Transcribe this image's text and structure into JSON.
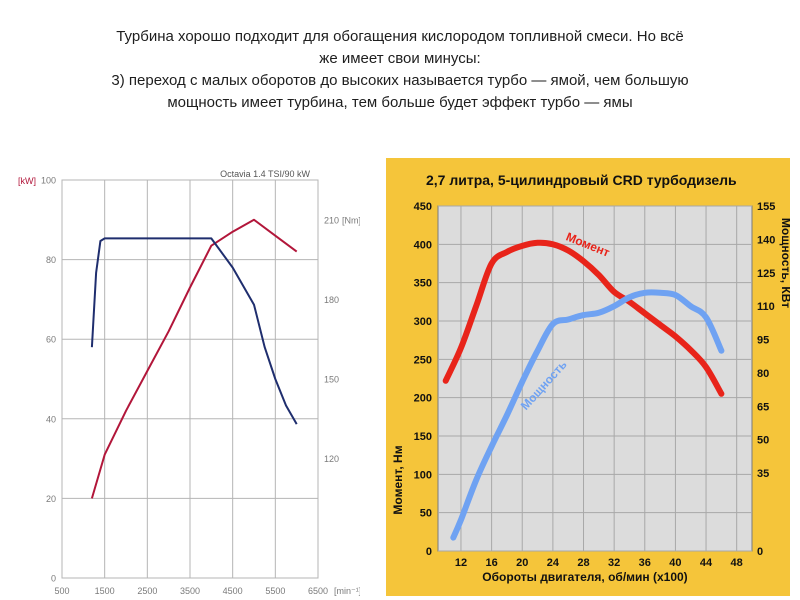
{
  "heading": {
    "line1": "Турбина хорошо подходит для обогащения кислородом топливной смеси. Но всё",
    "line2": "же имеет свои минусы:",
    "line3": "3) переход с малых оборотов до высоких называется турбо — ямой, чем большую",
    "line4": "мощность имеет турбина, тем больше будет эффект турбо — ямы"
  },
  "chart_data": [
    {
      "type": "line",
      "title": "Octavia 1.4 TSI/90 kW",
      "left_unit_label": "[kW]",
      "right_unit_label": "[Nm]",
      "x_unit_label": "[min⁻¹]",
      "xlim": [
        500,
        6500
      ],
      "x_ticks": [
        "500",
        "1500",
        "2500",
        "3500",
        "4500",
        "5500",
        "6500"
      ],
      "ylim": [
        0,
        100
      ],
      "y_ticks": [
        "0",
        "20",
        "40",
        "60",
        "80",
        "100"
      ],
      "y2lim": [
        75,
        225
      ],
      "y2_ticks": [
        "120",
        "150",
        "180",
        "210"
      ],
      "grid": true,
      "colors": {
        "power": "#b2163a",
        "torque": "#1f2e6e",
        "grid": "#b5b5b5",
        "axis_text": "#7a7a7a",
        "axis_red": "#b2163a"
      },
      "series": [
        {
          "axis": "left",
          "x": [
            1200,
            1500,
            2000,
            2500,
            3000,
            3500,
            4000,
            4500,
            5000,
            5500,
            6000
          ],
          "values": [
            20,
            31,
            42,
            52,
            62,
            73,
            83.5,
            87,
            90,
            86,
            82
          ]
        },
        {
          "axis": "right",
          "x": [
            1200,
            1300,
            1400,
            1500,
            2000,
            2500,
            3000,
            3500,
            4000,
            4500,
            5000,
            5250,
            5500,
            5750,
            6000
          ],
          "values": [
            162,
            190,
            202,
            203,
            203,
            203,
            203,
            203,
            203,
            192,
            178,
            162,
            150,
            140,
            133
          ]
        }
      ]
    },
    {
      "type": "line",
      "title": "2,7 литра, 5-цилиндровый CRD турбодизель",
      "xlabel": "Обороты двигателя, об/мин (x100)",
      "ylabel": "Момент, Нм",
      "y2label": "Мощность, КВт",
      "x_ticks": [
        12,
        16,
        20,
        24,
        28,
        32,
        36,
        40,
        44,
        48
      ],
      "xlim": [
        9,
        50
      ],
      "ylim": [
        0,
        450
      ],
      "y_ticks": [
        0,
        50,
        100,
        150,
        200,
        250,
        300,
        350,
        400,
        450
      ],
      "y2lim": [
        0,
        155
      ],
      "y2_ticks": [
        0,
        35,
        50,
        65,
        80,
        95,
        110,
        125,
        140,
        155
      ],
      "grid": true,
      "colors": {
        "background": "#f5c53a",
        "plot": "#dcdcdc",
        "grid": "#a8a8a8",
        "text": "#111111",
        "title": "#111111",
        "torque": "#e8241a",
        "power": "#6fa2f2"
      },
      "series": [
        {
          "name": "Момент",
          "axis": "left",
          "x": [
            10,
            12,
            14,
            16,
            18,
            20,
            22,
            24,
            26,
            28,
            30,
            32,
            34,
            36,
            38,
            40,
            42,
            44,
            46
          ],
          "values": [
            222,
            265,
            320,
            375,
            390,
            398,
            402,
            400,
            392,
            378,
            360,
            338,
            325,
            310,
            295,
            280,
            262,
            240,
            205
          ]
        },
        {
          "name": "Мощность",
          "axis": "right",
          "x": [
            11,
            12,
            14,
            16,
            18,
            20,
            22,
            24,
            26,
            28,
            30,
            32,
            34,
            36,
            38,
            40,
            42,
            44,
            46
          ],
          "values": [
            6,
            14,
            32,
            47,
            61,
            76,
            90,
            102,
            104,
            106,
            107,
            110,
            114,
            116,
            116,
            115,
            110,
            105,
            90
          ]
        }
      ]
    }
  ]
}
